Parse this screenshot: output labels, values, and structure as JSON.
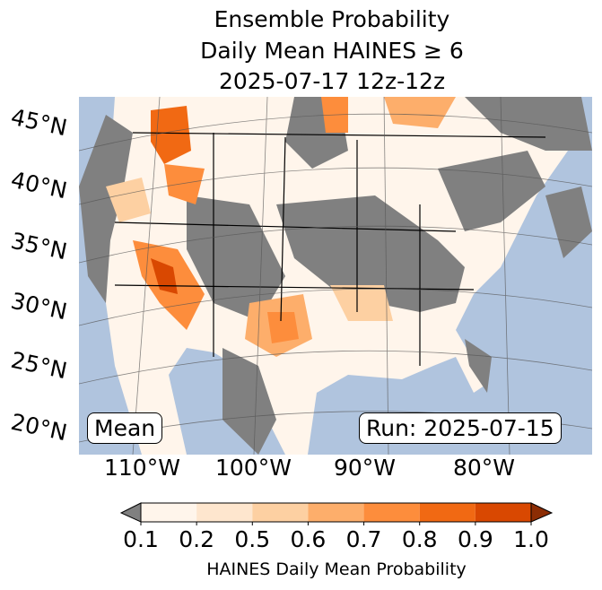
{
  "title": {
    "line1": "Ensemble Probability",
    "line2": "Daily Mean HAINES ≥ 6",
    "line3": "2025-07-17 12z-12z"
  },
  "map": {
    "lat_labels": [
      "45°N",
      "40°N",
      "35°N",
      "30°N",
      "25°N",
      "20°N"
    ],
    "lon_labels": [
      "110°W",
      "100°W",
      "90°W",
      "80°W"
    ],
    "stat_label": "Mean",
    "run_label": "Run: 2025-07-15",
    "colors": {
      "ocean": "#b0c4de",
      "below_min": "#808080"
    }
  },
  "colorbar": {
    "ticks": [
      "0.1",
      "0.2",
      "0.5",
      "0.6",
      "0.7",
      "0.8",
      "0.9",
      "1.0"
    ],
    "colors": [
      "#fff5eb",
      "#fee6ce",
      "#fdd0a2",
      "#fdae6b",
      "#fd8d3c",
      "#f16913",
      "#d94801"
    ],
    "extend_min_color": "#808080",
    "extend_max_color": "#8c2d04",
    "label": "HAINES Daily Mean Probability"
  }
}
